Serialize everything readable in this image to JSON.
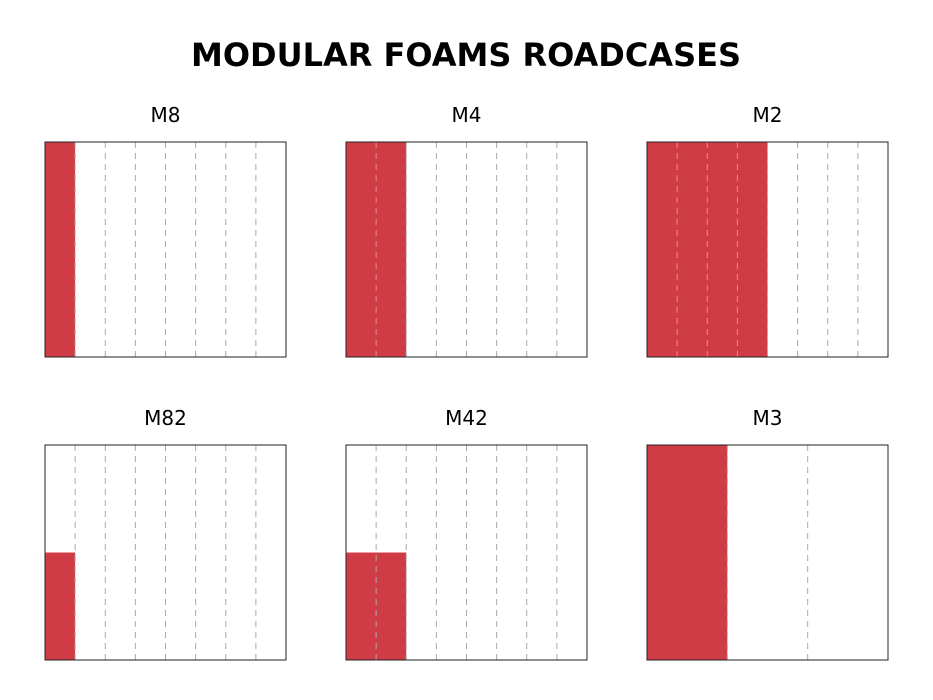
{
  "title": "MODULAR FOAMS ROADCASES",
  "panels": [
    {
      "label": "M8"
    },
    {
      "label": "M4"
    },
    {
      "label": "M2"
    },
    {
      "label": "M82"
    },
    {
      "label": "M42"
    },
    {
      "label": "M3"
    }
  ]
}
